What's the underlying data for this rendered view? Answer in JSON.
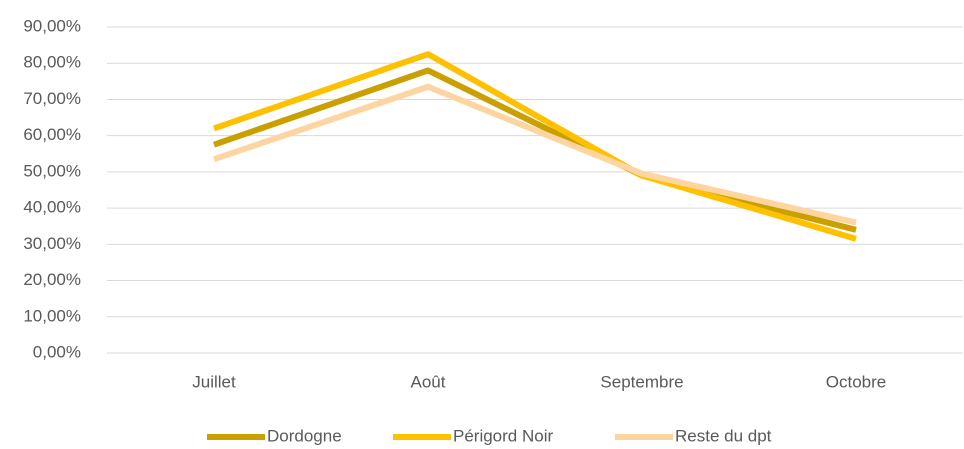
{
  "chart_data": {
    "type": "line",
    "categories": [
      "Juillet",
      "Août",
      "Septembre",
      "Octobre"
    ],
    "series": [
      {
        "name": "Dordogne",
        "color": "#c9a000",
        "values": [
          57.5,
          78,
          49,
          34
        ]
      },
      {
        "name": "Périgord Noir",
        "color": "#ffc000",
        "values": [
          62,
          82.5,
          49,
          31.5
        ]
      },
      {
        "name": "Reste du dpt",
        "color": "#fdd5a0",
        "values": [
          53.5,
          73.5,
          49.5,
          36
        ]
      }
    ],
    "ylim": [
      0,
      90
    ],
    "yticks": [
      {
        "value": 0,
        "label": "0,00%"
      },
      {
        "value": 10,
        "label": "10,00%"
      },
      {
        "value": 20,
        "label": "20,00%"
      },
      {
        "value": 30,
        "label": "30,00%"
      },
      {
        "value": 40,
        "label": "40,00%"
      },
      {
        "value": 50,
        "label": "50,00%"
      },
      {
        "value": 60,
        "label": "60,00%"
      },
      {
        "value": 70,
        "label": "70,00%"
      },
      {
        "value": 80,
        "label": "80,00%"
      },
      {
        "value": 90,
        "label": "90,00%"
      }
    ],
    "grid": true,
    "legend": "bottom"
  }
}
